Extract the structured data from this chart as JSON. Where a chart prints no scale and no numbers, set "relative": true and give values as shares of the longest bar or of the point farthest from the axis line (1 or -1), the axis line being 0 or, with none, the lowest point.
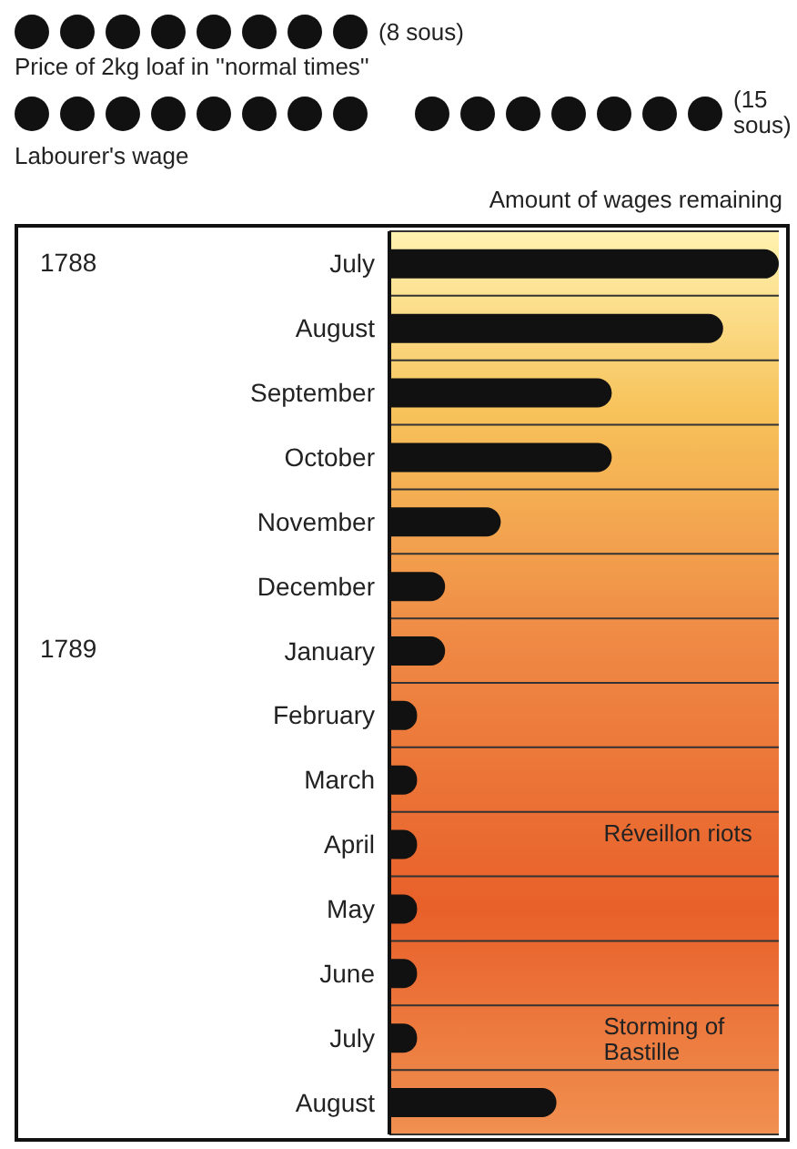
{
  "chart_data": {
    "type": "bar",
    "orientation": "horizontal",
    "relative": true,
    "categories": [
      "July",
      "August",
      "September",
      "October",
      "November",
      "December",
      "January",
      "February",
      "March",
      "April",
      "May",
      "June",
      "July",
      "August"
    ],
    "values": [
      1,
      0.857,
      0.571,
      0.571,
      0.286,
      0.143,
      0.143,
      0.071,
      0.071,
      0.071,
      0.071,
      0.071,
      0.071,
      0.429
    ],
    "color": "#111111",
    "grid": "y",
    "annotations": [
      "1788",
      "1789",
      "Réveillon riots",
      "Storming of Bastille",
      "(8 sous)",
      "Price of 2kg loaf in ''normal times''",
      "(15 sous)",
      "Labourer's wage",
      "Amount of wages remaining"
    ]
  }
}
